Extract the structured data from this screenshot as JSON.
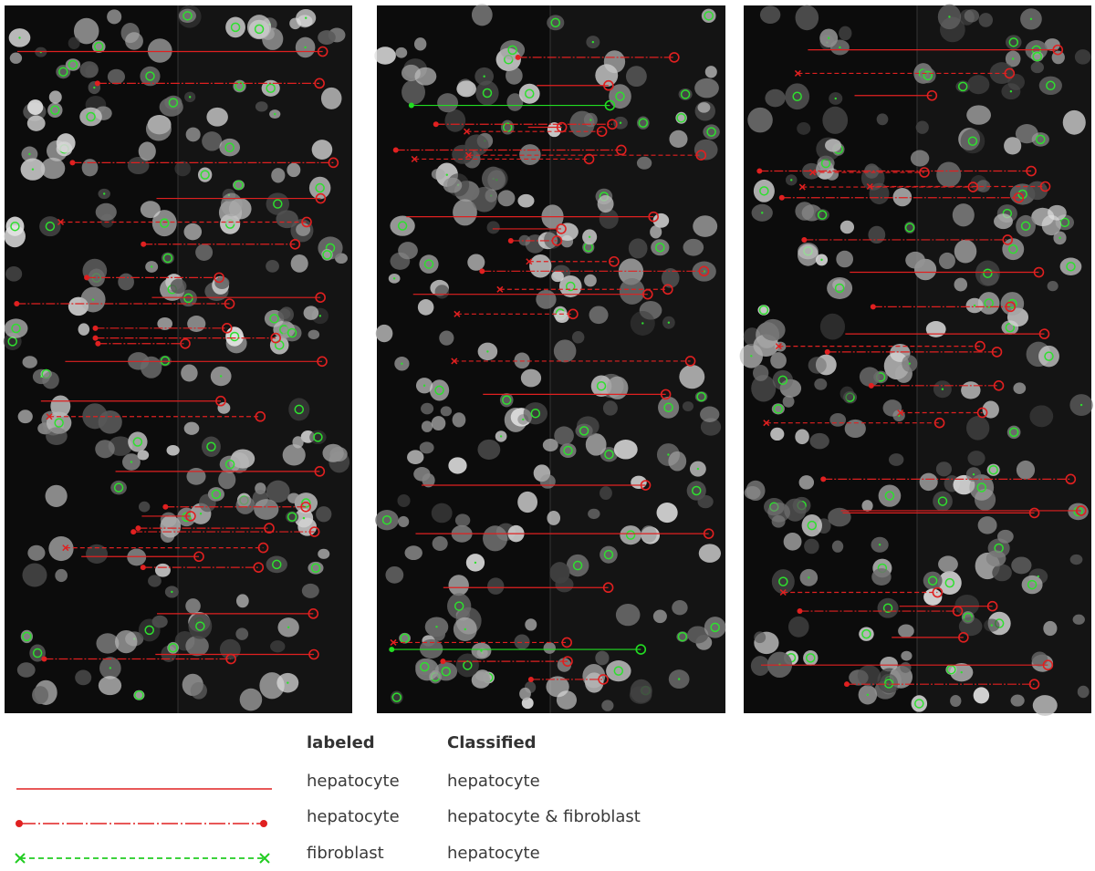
{
  "legend": {
    "headers": [
      "labeled",
      "Classified"
    ],
    "rows": [
      {
        "labeled": "hepatocyte",
        "classified": "hepatocyte"
      },
      {
        "labeled": "hepatocyte",
        "classified": "hepatocyte & fibroblast"
      },
      {
        "labeled": "fibroblast",
        "classified": "hepatocyte"
      }
    ]
  }
}
